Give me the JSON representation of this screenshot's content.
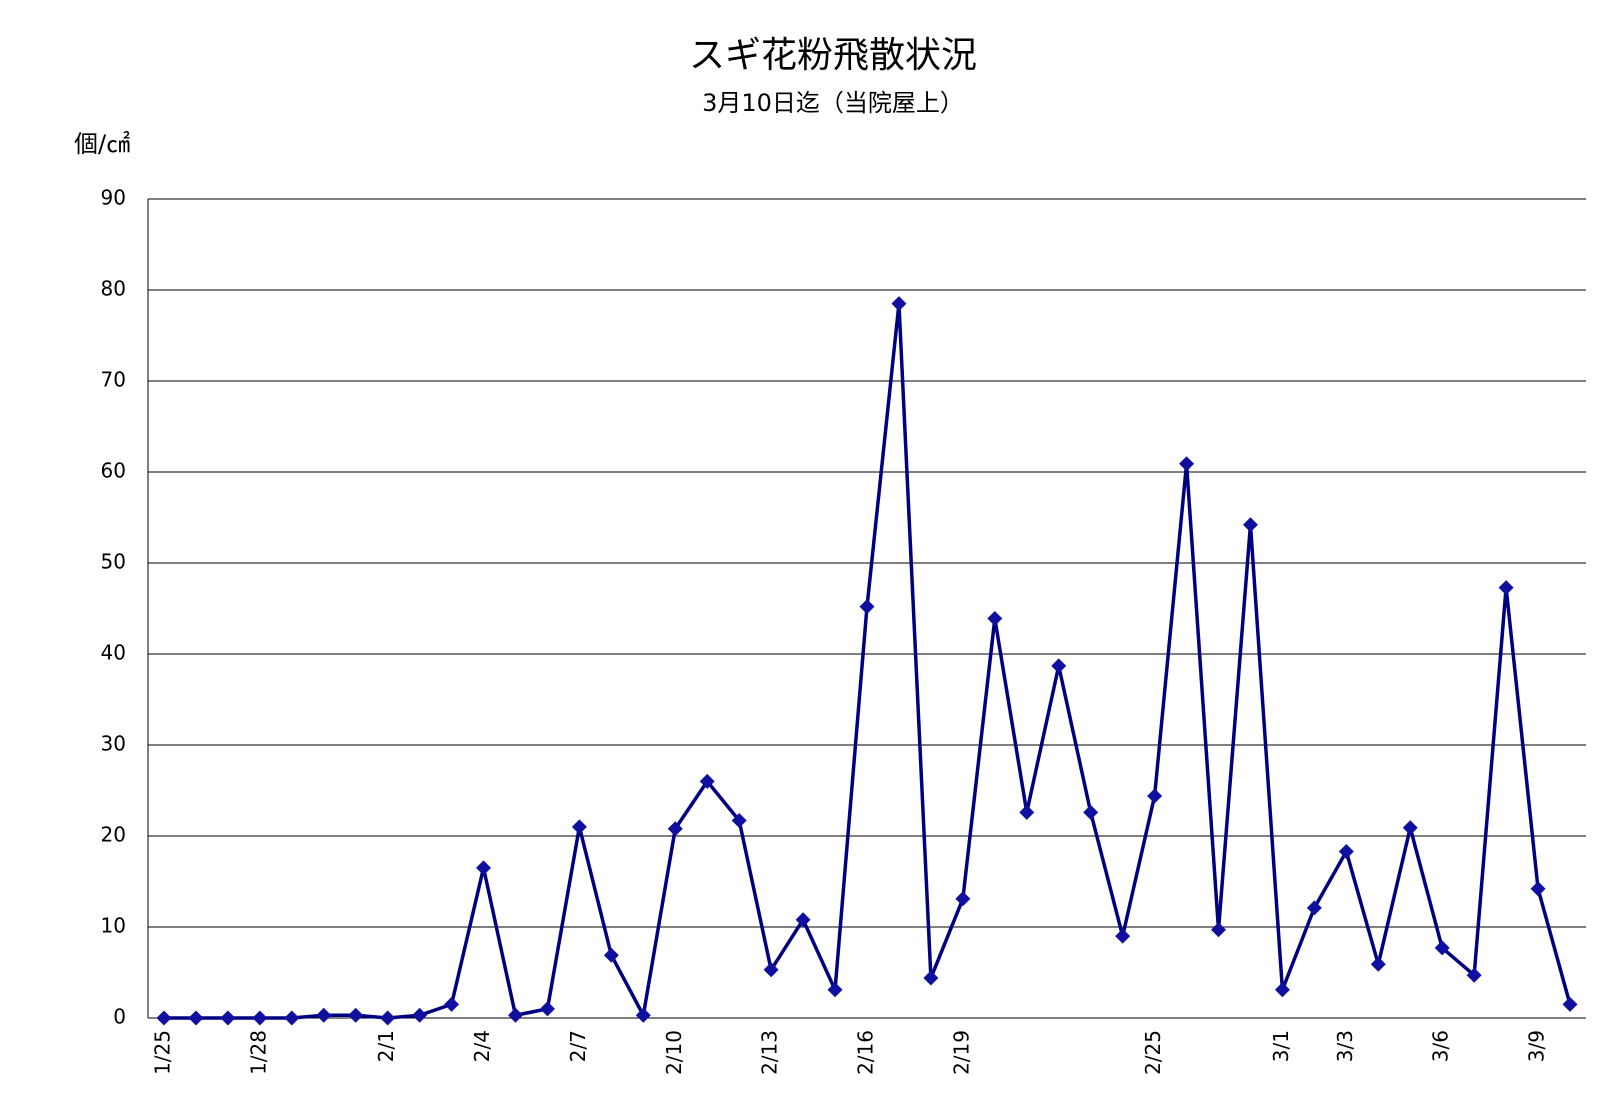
{
  "chart_data": {
    "type": "line",
    "title": "スギ花粉飛散状況",
    "subtitle": "3月10日迄（当院屋上）",
    "y_axis_label": "個/㎠",
    "categories": [
      "1/25",
      null,
      null,
      "1/28",
      null,
      null,
      null,
      "2/1",
      null,
      null,
      "2/4",
      null,
      null,
      "2/7",
      null,
      null,
      "2/10",
      null,
      null,
      "2/13",
      null,
      null,
      "2/16",
      null,
      null,
      "2/19",
      null,
      null,
      null,
      null,
      null,
      "2/25",
      null,
      null,
      null,
      "3/1",
      null,
      "3/3",
      null,
      null,
      "3/6",
      null,
      null,
      "3/9",
      null
    ],
    "series": [
      {
        "color": "#000080",
        "marker_color": "#1010a0",
        "values": [
          0,
          0,
          0,
          0,
          0,
          0.3,
          0.3,
          0,
          0.3,
          1.5,
          16.5,
          0.3,
          1.0,
          21,
          6.9,
          0.3,
          20.8,
          26,
          21.7,
          5.3,
          10.8,
          3.1,
          45.2,
          78.5,
          4.4,
          13.1,
          43.9,
          22.6,
          38.7,
          22.6,
          9.0,
          24.4,
          60.9,
          9.7,
          54.2,
          3.1,
          12.1,
          18.3,
          5.9,
          20.9,
          7.7,
          4.7,
          47.3,
          14.2,
          1.5
        ]
      }
    ],
    "ylim": [
      0,
      90
    ],
    "yticks": [
      0,
      10,
      20,
      30,
      40,
      50,
      60,
      70,
      80,
      90
    ],
    "grid": true
  }
}
